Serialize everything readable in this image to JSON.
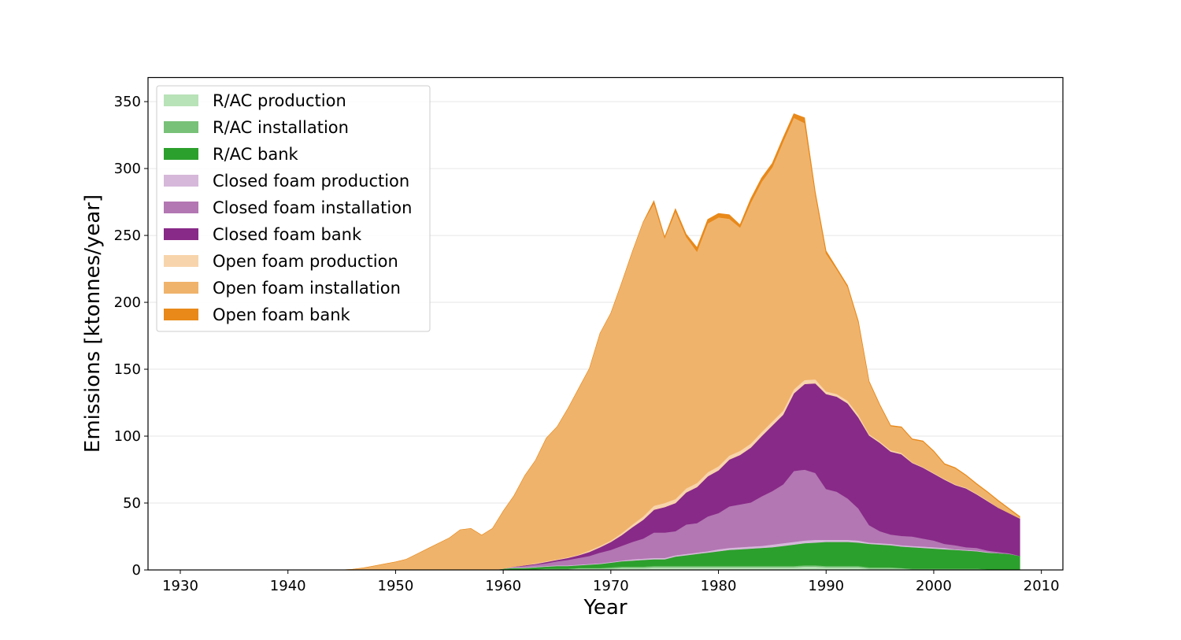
{
  "chart_data": {
    "type": "area",
    "stacked": true,
    "xlabel": "Year",
    "ylabel": "Emissions [ktonnes/year]",
    "xlim": [
      1927,
      2012
    ],
    "ylim": [
      0,
      368
    ],
    "xticks": [
      1930,
      1940,
      1950,
      1960,
      1970,
      1980,
      1990,
      2000,
      2010
    ],
    "yticks": [
      0,
      50,
      100,
      150,
      200,
      250,
      300,
      350
    ],
    "grid": "horizontal",
    "legend_position": "top-left",
    "x": [
      1930,
      1931,
      1932,
      1933,
      1934,
      1935,
      1936,
      1937,
      1938,
      1939,
      1940,
      1941,
      1942,
      1943,
      1944,
      1945,
      1946,
      1947,
      1948,
      1949,
      1950,
      1951,
      1952,
      1953,
      1954,
      1955,
      1956,
      1957,
      1958,
      1959,
      1960,
      1961,
      1962,
      1963,
      1964,
      1965,
      1966,
      1967,
      1968,
      1969,
      1970,
      1971,
      1972,
      1973,
      1974,
      1975,
      1976,
      1977,
      1978,
      1979,
      1980,
      1981,
      1982,
      1983,
      1984,
      1985,
      1986,
      1987,
      1988,
      1989,
      1990,
      1991,
      1992,
      1993,
      1994,
      1995,
      1996,
      1997,
      1998,
      1999,
      2000,
      2001,
      2002,
      2003,
      2004,
      2005,
      2006,
      2007,
      2008
    ],
    "series": [
      {
        "name": "R/AC production",
        "color": "#b8e2b8",
        "values": [
          0,
          0,
          0,
          0,
          0,
          0,
          0,
          0,
          0,
          0,
          0,
          0,
          0,
          0,
          0,
          0,
          0,
          0,
          0,
          0,
          0,
          0,
          0,
          0,
          0,
          0,
          0,
          0,
          0,
          0,
          0,
          0,
          0,
          0,
          0.5,
          0.5,
          0.5,
          1,
          1,
          1,
          1,
          1.5,
          1.5,
          1.5,
          2,
          2,
          2,
          2,
          2,
          2,
          2,
          2,
          2,
          2,
          2,
          2,
          2,
          2,
          2.5,
          2.5,
          2,
          2,
          2,
          2,
          1,
          1,
          1,
          1,
          0.5,
          0.5,
          0.5,
          0.5,
          0.5,
          0.5,
          0.5,
          0,
          0,
          0,
          0
        ]
      },
      {
        "name": "R/AC installation",
        "color": "#78c178",
        "values": [
          0,
          0,
          0,
          0,
          0,
          0,
          0,
          0,
          0,
          0,
          0,
          0,
          0,
          0,
          0,
          0,
          0,
          0,
          0,
          0,
          0,
          0,
          0,
          0,
          0,
          0,
          0,
          0,
          0,
          0,
          0.5,
          0.5,
          0.5,
          0.5,
          0.5,
          0.5,
          0.5,
          0.5,
          0.5,
          0.5,
          1,
          1,
          1,
          1,
          1,
          1,
          1,
          1,
          1,
          1,
          1,
          1,
          1,
          1,
          1,
          1,
          1,
          1,
          1,
          1,
          1,
          1,
          1,
          1,
          1,
          1,
          1,
          0.5,
          0.5,
          0.5,
          0.5,
          0.5,
          0.5,
          0.5,
          0.5,
          0.5,
          0.5,
          0.5,
          0.5
        ]
      },
      {
        "name": "R/AC bank",
        "color": "#2ca02c",
        "values": [
          0,
          0,
          0,
          0,
          0,
          0,
          0,
          0,
          0,
          0,
          0,
          0,
          0,
          0,
          0,
          0,
          0,
          0,
          0,
          0,
          0,
          0,
          0,
          0,
          0,
          0,
          0,
          0,
          0,
          0,
          0.5,
          1,
          1,
          1.5,
          1.5,
          2,
          2,
          2,
          2.5,
          3,
          3.5,
          4,
          4.5,
          5,
          5,
          5,
          7,
          8,
          9,
          10,
          11,
          12,
          12.5,
          13,
          13.5,
          14,
          15,
          16,
          16.5,
          17,
          18,
          18,
          18,
          17.5,
          17.5,
          17,
          16.5,
          16,
          16,
          15.5,
          15,
          14.5,
          14,
          13.5,
          13,
          12.5,
          12,
          11.5,
          10
        ]
      },
      {
        "name": "Closed foam production",
        "color": "#d6b8da",
        "values": [
          0,
          0,
          0,
          0,
          0,
          0,
          0,
          0,
          0,
          0,
          0,
          0,
          0,
          0,
          0,
          0,
          0,
          0,
          0,
          0,
          0,
          0,
          0,
          0,
          0,
          0,
          0,
          0,
          0,
          0,
          0,
          0.5,
          0.5,
          0.5,
          0.5,
          0.5,
          0.5,
          0.5,
          0.5,
          0.5,
          0.5,
          0.5,
          1,
          1,
          1,
          1,
          1,
          1,
          1,
          1,
          1.5,
          1.5,
          1.5,
          1.5,
          1.5,
          2,
          2,
          2,
          2,
          2,
          1.5,
          1.5,
          1.5,
          1.5,
          1,
          1,
          1,
          1,
          1,
          1,
          1,
          1,
          0.5,
          0.5,
          0.5,
          0.5,
          0,
          0,
          0
        ]
      },
      {
        "name": "Closed foam installation",
        "color": "#b377b3",
        "values": [
          0,
          0,
          0,
          0,
          0,
          0,
          0,
          0,
          0,
          0,
          0,
          0,
          0,
          0,
          0,
          0,
          0,
          0,
          0,
          0,
          0,
          0,
          0,
          0,
          0,
          0,
          0,
          0,
          0,
          0,
          0,
          0.5,
          1,
          1.5,
          2,
          3,
          4,
          5,
          6,
          8,
          9,
          11,
          13,
          15,
          19,
          19,
          18,
          22,
          22,
          26,
          27,
          31,
          32,
          33,
          37,
          40,
          44,
          53,
          53,
          50,
          38,
          36,
          31,
          24,
          13,
          9,
          7,
          7,
          7,
          6,
          5,
          3,
          3,
          2,
          2,
          1,
          1,
          0.5,
          0
        ]
      },
      {
        "name": "Closed foam bank",
        "color": "#882a88",
        "values": [
          0,
          0,
          0,
          0,
          0,
          0,
          0,
          0,
          0,
          0,
          0,
          0,
          0,
          0,
          0,
          0,
          0,
          0,
          0,
          0,
          0,
          0,
          0,
          0,
          0,
          0,
          0,
          0,
          0,
          0,
          0,
          0,
          0.5,
          0.5,
          1,
          1,
          1.5,
          2,
          3,
          4,
          6,
          8,
          11,
          14,
          17,
          19,
          21,
          24,
          27,
          30,
          32,
          35,
          37,
          41,
          45,
          49,
          52,
          58,
          64,
          67,
          71,
          71,
          71,
          68,
          67,
          66,
          62,
          61,
          55,
          53,
          50,
          48,
          45,
          44,
          40,
          37,
          33,
          30,
          28
        ]
      },
      {
        "name": "Open foam production",
        "color": "#f8d4ac",
        "values": [
          0,
          0,
          0,
          0,
          0,
          0,
          0,
          0,
          0,
          0,
          0,
          0,
          0,
          0,
          0,
          0,
          0,
          0,
          0,
          0,
          0,
          0,
          0,
          0,
          0,
          0,
          0,
          0,
          0,
          0,
          0,
          0,
          0,
          0.5,
          0.5,
          0.5,
          0.5,
          0.5,
          1,
          1,
          1,
          1.5,
          2,
          2.5,
          3,
          3,
          3,
          3,
          3,
          3,
          3,
          3,
          3,
          3,
          3,
          3,
          3,
          3,
          3,
          3,
          2,
          2,
          2,
          2,
          1,
          1,
          1,
          1,
          0.5,
          0.5,
          0.5,
          0.5,
          0.5,
          0.5,
          0.5,
          0.5,
          0,
          0,
          0
        ]
      },
      {
        "name": "Open foam installation",
        "color": "#f0b36b",
        "values": [
          0,
          0,
          0,
          0,
          0,
          0,
          0,
          0,
          0,
          0,
          0,
          0,
          0,
          0,
          0,
          0,
          0.5,
          1.5,
          3,
          4.5,
          6,
          8,
          12,
          16,
          20,
          24,
          30,
          31,
          26,
          31,
          43,
          53,
          67,
          77,
          92,
          99,
          111,
          124,
          136,
          159,
          170,
          187,
          204,
          220,
          226,
          198,
          215,
          188,
          173,
          186,
          186,
          177,
          167,
          180,
          187,
          190,
          201,
          203,
          192,
          138,
          103,
          93,
          85,
          69,
          39,
          27,
          18,
          19,
          17,
          19,
          16,
          11,
          12,
          9,
          7,
          6,
          5,
          3,
          1
        ]
      },
      {
        "name": "Open foam bank",
        "color": "#e8891a",
        "values": [
          0,
          0,
          0,
          0,
          0,
          0,
          0,
          0,
          0,
          0,
          0,
          0,
          0,
          0,
          0,
          0,
          0,
          0,
          0,
          0,
          0,
          0,
          0,
          0,
          0,
          0,
          0,
          0,
          0,
          0,
          0,
          0,
          0,
          0,
          0,
          0,
          0,
          0,
          0,
          0,
          0,
          0,
          0,
          0,
          2,
          1,
          2,
          2,
          3,
          3,
          3,
          3,
          2,
          3,
          3,
          3,
          3,
          3,
          4,
          2,
          2,
          1,
          1,
          1,
          0.5,
          0.5,
          0.5,
          0.5,
          0.5,
          0.5,
          0.5,
          0.5,
          0.5,
          0.5,
          0.5,
          0.5,
          0.5,
          0.5,
          0.5
        ]
      }
    ]
  }
}
